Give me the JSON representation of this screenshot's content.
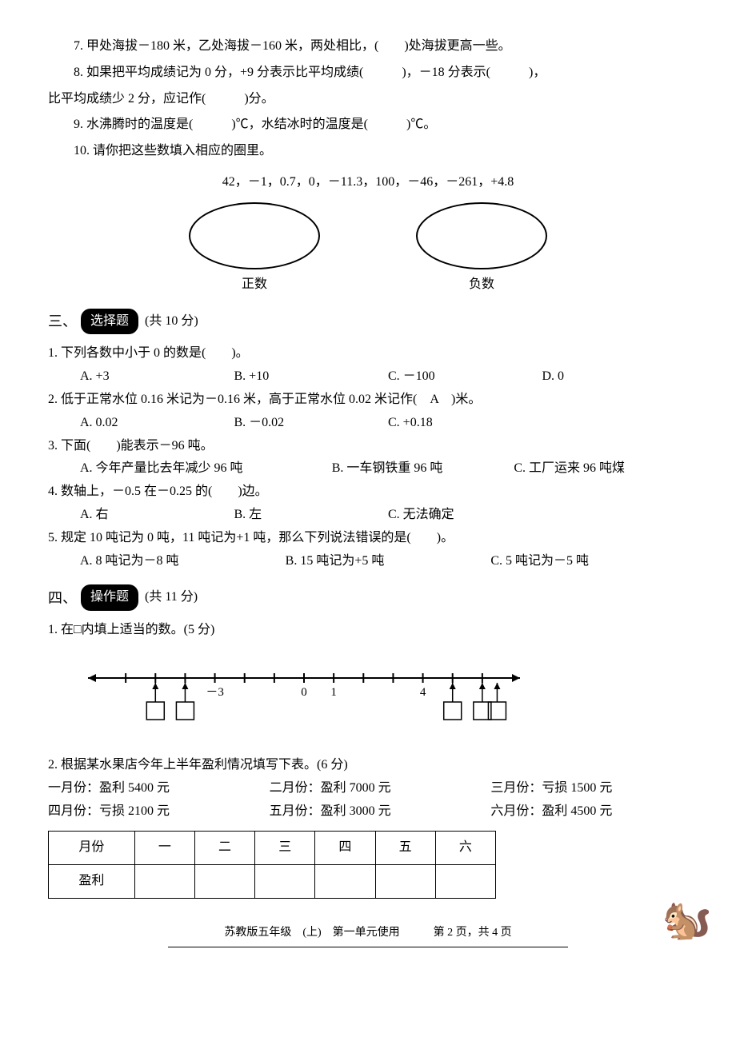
{
  "q7": "7. 甲处海拔－180 米，乙处海拔－160 米，两处相比，(　　)处海拔更高一些。",
  "q8a": "8. 如果把平均成绩记为 0 分，+9 分表示比平均成绩(　　　)，－18 分表示(　　　)，",
  "q8b": "比平均成绩少 2 分，应记作(　　　)分。",
  "q9": "9. 水沸腾时的温度是(　　　)℃，水结冰时的温度是(　　　)℃。",
  "q10": "10. 请你把这些数填入相应的圈里。",
  "numbers": "42，－1，0.7，0，－11.3，100，－46，－261，+4.8",
  "oval1_label": "正数",
  "oval2_label": "负数",
  "sec3_num": "三、",
  "sec3_title": "选择题",
  "sec3_points": "(共 10 分)",
  "s3q1": "1. 下列各数中小于 0 的数是(　　)。",
  "s3q1a": "A. +3",
  "s3q1b": "B. +10",
  "s3q1c": "C. －100",
  "s3q1d": "D. 0",
  "s3q2": "2. 低于正常水位 0.16 米记为－0.16 米，高于正常水位 0.02 米记作(　A　)米。",
  "s3q2a": "A. 0.02",
  "s3q2b": "B. －0.02",
  "s3q2c": "C. +0.18",
  "s3q3": "3. 下面(　　)能表示－96 吨。",
  "s3q3a": "A. 今年产量比去年减少 96 吨",
  "s3q3b": "B. 一车钢铁重 96 吨",
  "s3q3c": "C. 工厂运来 96 吨煤",
  "s3q4": "4. 数轴上，－0.5 在－0.25 的(　　)边。",
  "s3q4a": "A. 右",
  "s3q4b": "B. 左",
  "s3q4c": "C. 无法确定",
  "s3q5": "5. 规定 10 吨记为 0 吨，11 吨记为+1 吨，那么下列说法错误的是(　　)。",
  "s3q5a": "A. 8 吨记为－8 吨",
  "s3q5b": "B. 15 吨记为+5 吨",
  "s3q5c": "C. 5 吨记为－5 吨",
  "sec4_num": "四、",
  "sec4_title": "操作题",
  "sec4_points": "(共 11 分)",
  "s4q1": "1. 在□内填上适当的数。(5 分)",
  "numberline": {
    "xmin": -7,
    "xmax": 7,
    "ticks": [
      -6,
      -5,
      -4,
      -3,
      -2,
      -1,
      0,
      1,
      2,
      3,
      4,
      5,
      6
    ],
    "labels": {
      "-3": "－3",
      "0": "0",
      "1": "1",
      "4": "4"
    },
    "boxes_at": [
      -5,
      -4,
      5,
      6,
      6.5
    ],
    "line_color": "#000",
    "box_size": 22
  },
  "s4q2": "2. 根据某水果店今年上半年盈利情况填写下表。(6 分)",
  "months_row1": {
    "m1": "一月份：盈利 5400 元",
    "m2": "二月份：盈利 7000 元",
    "m3": "三月份：亏损 1500 元"
  },
  "months_row2": {
    "m4": "四月份：亏损 2100 元",
    "m5": "五月份：盈利 3000 元",
    "m6": "六月份：盈利 4500 元"
  },
  "table": {
    "header": [
      "月份",
      "一",
      "二",
      "三",
      "四",
      "五",
      "六"
    ],
    "row_label": "盈利"
  },
  "footer_text": "苏教版五年级　(上)　第一单元使用　　　第 2 页，共 4 页"
}
